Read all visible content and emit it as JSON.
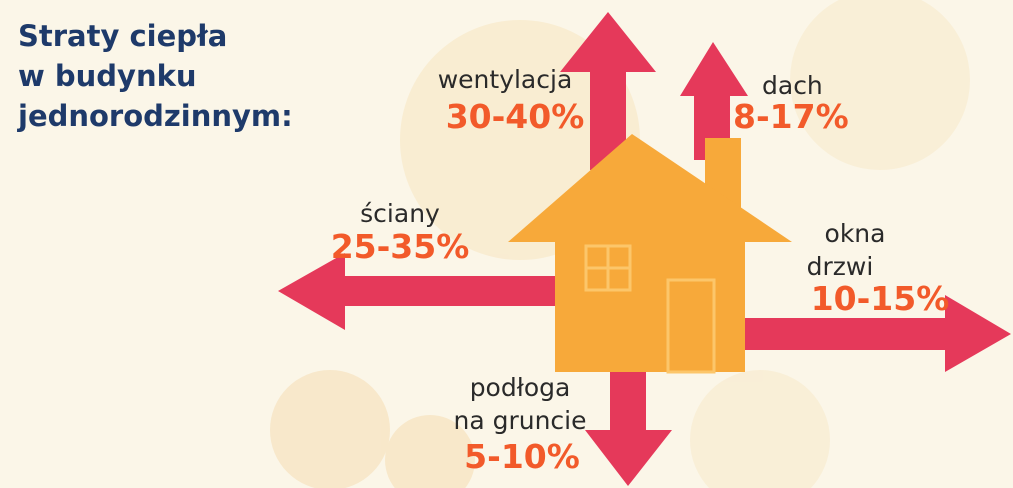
{
  "title": {
    "lines": [
      "Straty ciepła",
      "w budynku",
      "jednorodzinnym:"
    ]
  },
  "items": [
    {
      "label": [
        "wentylacja"
      ],
      "value": "30-40%"
    },
    {
      "label": [
        "dach"
      ],
      "value": "8-17%"
    },
    {
      "label": [
        "ściany"
      ],
      "value": "25-35%"
    },
    {
      "label": [
        "okna",
        "drzwi"
      ],
      "value": "10-15%"
    },
    {
      "label": [
        "podłoga",
        "na gruncie"
      ],
      "value": "5-10%"
    }
  ]
}
